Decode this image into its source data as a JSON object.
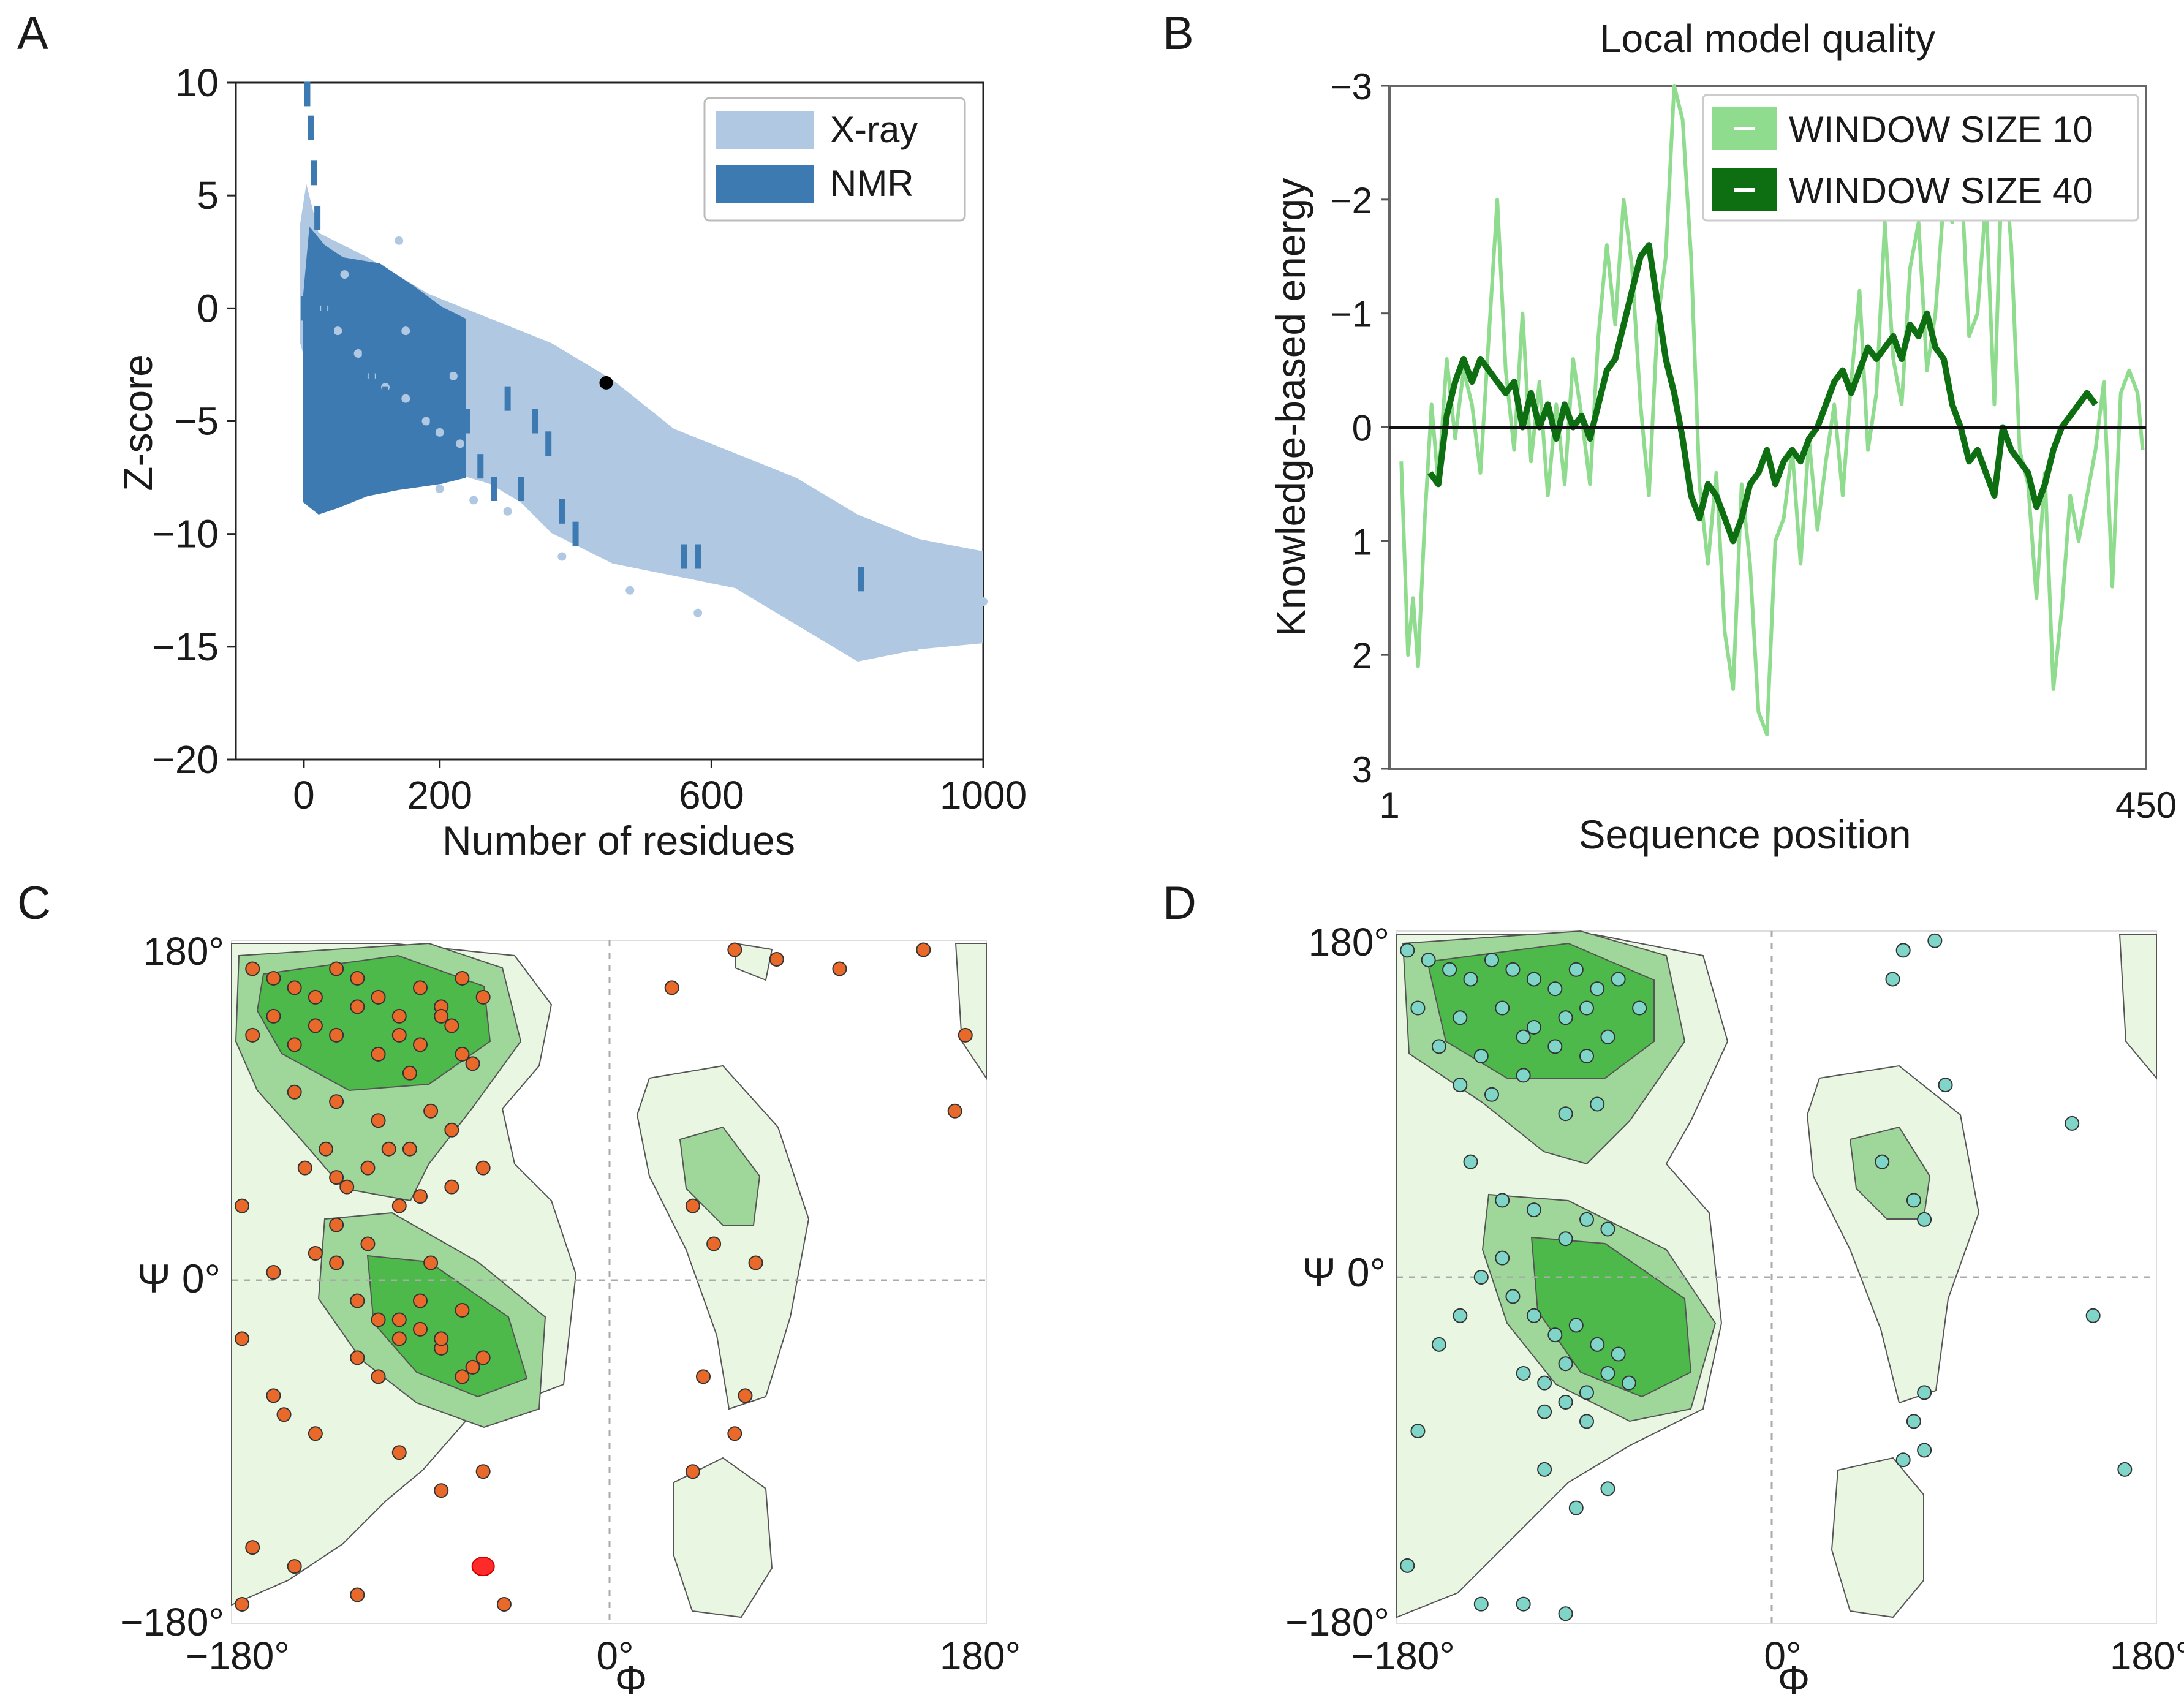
{
  "panels": {
    "a": "A",
    "b": "B",
    "c": "C",
    "d": "D"
  },
  "colors": {
    "xray": "#b0c8e2",
    "nmr": "#3d7ab2",
    "query": "#000000",
    "win10": "#8fdc8f",
    "win40": "#0e6e12",
    "rama_light": "#e8f6e2",
    "rama_mid": "#9fd79b",
    "rama_core": "#4cb94a",
    "points_c": "#e8692a",
    "outlier_c": "#ff2a2a",
    "points_d": "#7fd6c8"
  },
  "chart_data": [
    {
      "id": "A",
      "type": "scatter",
      "title": "",
      "xlabel": "Number of residues",
      "ylabel": "Z-score",
      "xlim": [
        -100,
        1000
      ],
      "ylim": [
        -20,
        10
      ],
      "xticks": [
        "0",
        "200",
        "600",
        "1000"
      ],
      "xtick_values": [
        0,
        200,
        600,
        1000
      ],
      "yticks": [
        "10",
        "5",
        "0",
        "−10",
        "−15",
        "−20"
      ],
      "ytick_values": [
        10,
        5,
        0,
        -10,
        -15,
        -20
      ],
      "ytick_extra": {
        "label": "−5",
        "value": -5
      },
      "legend": {
        "position": "top-right",
        "entries": [
          "X-ray",
          "NMR"
        ]
      },
      "series": [
        {
          "name": "X-ray",
          "x": [
            10,
            30,
            50,
            80,
            100,
            120,
            150,
            180,
            200,
            230,
            260,
            300,
            330,
            360,
            400,
            440,
            480,
            520,
            560,
            600,
            640,
            680,
            720,
            760,
            800,
            850,
            900,
            950,
            1000,
            60,
            150,
            250,
            350,
            450,
            550,
            650,
            750,
            850,
            950,
            200,
            300,
            400,
            500,
            600,
            700,
            800,
            900,
            220,
            320,
            420,
            520,
            620,
            720,
            820,
            920,
            140,
            250,
            380,
            480,
            580
          ],
          "y": [
            4,
            0,
            -1,
            -2,
            -3,
            -3.5,
            -4,
            -5,
            -5.5,
            -6,
            -6.5,
            -7,
            -7.5,
            -8,
            -8.5,
            -9,
            -9.5,
            -10,
            -10.5,
            -11,
            -11.5,
            -12,
            -12.5,
            -13,
            -13.5,
            -14,
            -14,
            -14.5,
            -13,
            1.5,
            -1,
            -2,
            -3.5,
            -4.5,
            -6,
            -7,
            -8.5,
            -10,
            -11,
            -8,
            -9,
            -10,
            -11,
            -12,
            -13,
            -14,
            -15,
            -3,
            -4,
            -5,
            -6,
            -7.5,
            -9,
            -10,
            -11,
            3,
            -8.5,
            -11,
            -12.5,
            -13.5
          ]
        },
        {
          "name": "NMR",
          "x": [
            0,
            5,
            10,
            15,
            20,
            25,
            30,
            40,
            50,
            60,
            70,
            80,
            90,
            100,
            110,
            120,
            130,
            140,
            150,
            160,
            170,
            180,
            190,
            200,
            210,
            220,
            240,
            260,
            280,
            300,
            320,
            340,
            360,
            380,
            400,
            560,
            580,
            820
          ],
          "y": [
            0,
            9.5,
            8,
            6,
            4,
            2,
            0,
            -1,
            -2,
            -3,
            -4,
            -5,
            -2,
            -3,
            -6,
            -4,
            -2,
            -5,
            -7,
            -3,
            -6,
            -4,
            -5,
            -7,
            -3,
            -6,
            -5,
            -7,
            -8,
            -4,
            -8,
            -5,
            -6,
            -9,
            -10,
            -11,
            -11,
            -12
          ]
        },
        {
          "name": "query",
          "x": [
            445
          ],
          "y": [
            -3.3
          ]
        }
      ]
    },
    {
      "id": "B",
      "type": "line",
      "title": "Local model quality",
      "xlabel": "Sequence position",
      "ylabel": "Knowledge-based energy",
      "xlim": [
        1,
        450
      ],
      "ylim": [
        3,
        -3
      ],
      "xticks": [
        "1",
        "450"
      ],
      "yticks": [
        "−3",
        "−2",
        "−1",
        "0",
        "1",
        "2",
        "3"
      ],
      "ytick_values": [
        -3,
        -2,
        -1,
        0,
        1,
        2,
        3
      ],
      "legend": {
        "position": "top-right",
        "entries": [
          "WINDOW SIZE 10",
          "WINDOW SIZE 40"
        ]
      },
      "series": [
        {
          "name": "WINDOW SIZE 10",
          "x": [
            8,
            12,
            15,
            18,
            22,
            26,
            30,
            35,
            40,
            45,
            50,
            55,
            60,
            65,
            70,
            75,
            80,
            85,
            90,
            95,
            100,
            105,
            110,
            115,
            120,
            125,
            130,
            135,
            140,
            145,
            150,
            155,
            160,
            165,
            170,
            175,
            180,
            185,
            190,
            195,
            200,
            205,
            210,
            215,
            220,
            225,
            230,
            235,
            240,
            245,
            250,
            255,
            260,
            265,
            270,
            275,
            280,
            285,
            290,
            295,
            300,
            305,
            310,
            315,
            320,
            325,
            330,
            335,
            340,
            345,
            350,
            355,
            360,
            365,
            370,
            375,
            380,
            385,
            390,
            395,
            400,
            405,
            410,
            415,
            420,
            425,
            430,
            435,
            440,
            445,
            448
          ],
          "y": [
            0.3,
            2.0,
            1.5,
            2.1,
            0.8,
            -0.2,
            0.5,
            -0.6,
            0.1,
            -0.5,
            -0.2,
            0.4,
            -0.8,
            -2.0,
            -0.5,
            0.2,
            -1.0,
            0.3,
            -0.4,
            0.6,
            -0.2,
            0.5,
            -0.6,
            -0.1,
            0.5,
            -0.8,
            -1.6,
            -0.9,
            -2.0,
            -1.4,
            -0.2,
            0.6,
            -0.9,
            -1.5,
            -3.0,
            -2.7,
            -1.5,
            0.5,
            1.2,
            0.4,
            1.8,
            2.3,
            0.5,
            1.2,
            2.5,
            2.7,
            1.0,
            0.8,
            0.2,
            1.2,
            0.1,
            0.9,
            0.3,
            -0.2,
            0.6,
            -0.4,
            -1.2,
            0.2,
            -0.3,
            -1.8,
            -0.6,
            -0.2,
            -1.4,
            -1.8,
            -0.5,
            -1.0,
            -2.0,
            -1.8,
            -2.3,
            -0.8,
            -1.0,
            -2.0,
            -0.2,
            -2.5,
            -1.6,
            0.2,
            0.5,
            1.5,
            0.4,
            2.3,
            1.6,
            0.6,
            1.0,
            0.6,
            0.2,
            -0.4,
            1.4,
            -0.3,
            -0.5,
            -0.3,
            0.2
          ]
        },
        {
          "name": "WINDOW SIZE 40",
          "x": [
            25,
            30,
            35,
            40,
            45,
            50,
            55,
            60,
            65,
            70,
            75,
            80,
            85,
            90,
            95,
            100,
            105,
            110,
            115,
            120,
            125,
            130,
            135,
            140,
            145,
            150,
            155,
            160,
            165,
            170,
            175,
            180,
            185,
            190,
            195,
            200,
            205,
            210,
            215,
            220,
            225,
            230,
            235,
            240,
            245,
            250,
            255,
            260,
            265,
            270,
            275,
            280,
            285,
            290,
            295,
            300,
            305,
            310,
            315,
            320,
            325,
            330,
            335,
            340,
            345,
            350,
            355,
            360,
            365,
            370,
            375,
            380,
            385,
            390,
            395,
            400,
            405,
            410,
            415,
            420
          ],
          "y": [
            0.4,
            0.5,
            -0.1,
            -0.4,
            -0.6,
            -0.4,
            -0.6,
            -0.5,
            -0.4,
            -0.3,
            -0.4,
            0.0,
            -0.3,
            0.0,
            -0.2,
            0.1,
            -0.2,
            0.0,
            -0.1,
            0.1,
            -0.2,
            -0.5,
            -0.6,
            -0.9,
            -1.2,
            -1.5,
            -1.6,
            -1.1,
            -0.6,
            -0.3,
            0.1,
            0.6,
            0.8,
            0.5,
            0.6,
            0.8,
            1.0,
            0.8,
            0.5,
            0.4,
            0.2,
            0.5,
            0.3,
            0.2,
            0.3,
            0.1,
            0.0,
            -0.2,
            -0.4,
            -0.5,
            -0.3,
            -0.5,
            -0.7,
            -0.6,
            -0.7,
            -0.8,
            -0.6,
            -0.9,
            -0.8,
            -1.0,
            -0.7,
            -0.6,
            -0.2,
            0.0,
            0.3,
            0.2,
            0.4,
            0.6,
            0.0,
            0.2,
            0.3,
            0.4,
            0.7,
            0.5,
            0.2,
            0.0,
            -0.1,
            -0.2,
            -0.3,
            -0.2
          ]
        }
      ]
    },
    {
      "id": "C",
      "type": "scatter",
      "title": "",
      "xlabel": "Φ",
      "ylabel": "Ψ 0°",
      "xlim": [
        -180,
        180
      ],
      "ylim": [
        -180,
        180
      ],
      "xticks": [
        "−180°",
        "0°",
        "180°"
      ],
      "yticks": [
        "180°",
        "−180°"
      ],
      "series": [
        {
          "name": "residues",
          "phi": [
            -170,
            -160,
            -150,
            -140,
            -130,
            -120,
            -110,
            -100,
            -90,
            -80,
            -70,
            -60,
            -170,
            -150,
            -130,
            -110,
            -90,
            -75,
            -65,
            -160,
            -140,
            -120,
            -100,
            -80,
            -70,
            -150,
            -130,
            -110,
            -95,
            -85,
            -145,
            -125,
            -105,
            -90,
            -130,
            -120,
            -110,
            -100,
            -90,
            -80,
            -70,
            -60,
            -120,
            -110,
            -100,
            -90,
            -80,
            -70,
            -65,
            -130,
            -115,
            -100,
            -85,
            -75,
            -60,
            -160,
            -140,
            -100,
            -80,
            -60,
            -170,
            -150,
            -175,
            -120,
            -50,
            30,
            60,
            80,
            110,
            150,
            170,
            165,
            40,
            50,
            70,
            45,
            65,
            60,
            40,
            -175,
            -155,
            -135,
            -115,
            -95,
            -75,
            -175,
            -160,
            -140,
            -130
          ],
          "psi": [
            165,
            160,
            155,
            150,
            165,
            160,
            150,
            140,
            155,
            145,
            160,
            150,
            130,
            125,
            130,
            120,
            125,
            135,
            115,
            140,
            135,
            145,
            130,
            140,
            120,
            100,
            95,
            85,
            110,
            90,
            60,
            50,
            70,
            45,
            10,
            -10,
            -20,
            -30,
            -25,
            -35,
            -15,
            -40,
            -40,
            -50,
            -20,
            -10,
            -30,
            -50,
            -45,
            30,
            20,
            40,
            10,
            50,
            60,
            -60,
            -80,
            -90,
            -110,
            -100,
            -140,
            -150,
            -170,
            -165,
            -170,
            155,
            175,
            170,
            165,
            175,
            130,
            90,
            40,
            20,
            10,
            -50,
            -60,
            -80,
            -100,
            -30,
            -70,
            70,
            60,
            70,
            80,
            40,
            5,
            15,
            55
          ]
        }
      ],
      "outlier": {
        "phi": -60,
        "psi": -150
      }
    },
    {
      "id": "D",
      "type": "scatter",
      "title": "",
      "xlabel": "Φ",
      "ylabel": "Ψ 0°",
      "xlim": [
        -180,
        180
      ],
      "ylim": [
        -180,
        180
      ],
      "xticks": [
        "−180°",
        "0°",
        "180°"
      ],
      "yticks": [
        "180°",
        "−180°"
      ],
      "series": [
        {
          "name": "residues",
          "phi": [
            -175,
            -165,
            -155,
            -145,
            -135,
            -125,
            -115,
            -105,
            -95,
            -85,
            -75,
            -65,
            -170,
            -150,
            -130,
            -115,
            -100,
            -90,
            -80,
            -160,
            -140,
            -120,
            -105,
            -90,
            -150,
            -135,
            -120,
            -100,
            -85,
            -145,
            -130,
            -115,
            -100,
            -90,
            -80,
            -125,
            -115,
            -105,
            -95,
            -85,
            -75,
            -120,
            -110,
            -100,
            -90,
            -80,
            -110,
            -100,
            -90,
            -130,
            -140,
            -150,
            -160,
            -70,
            -170,
            -110,
            -95,
            -80,
            50,
            65,
            70,
            60,
            75,
            55,
            70,
            65,
            70,
            60,
            80,
            140,
            150,
            165,
            -100,
            -120,
            -140,
            -175
          ],
          "psi": [
            170,
            165,
            160,
            155,
            165,
            160,
            155,
            150,
            160,
            150,
            155,
            140,
            140,
            135,
            140,
            130,
            135,
            140,
            125,
            120,
            115,
            125,
            120,
            115,
            100,
            95,
            105,
            85,
            90,
            60,
            40,
            35,
            20,
            30,
            25,
            -10,
            -20,
            -30,
            -25,
            -35,
            -40,
            -50,
            -55,
            -45,
            -60,
            -50,
            -70,
            -65,
            -75,
            10,
            0,
            -20,
            -35,
            -55,
            -80,
            -100,
            -120,
            -110,
            60,
            40,
            30,
            170,
            175,
            155,
            -60,
            -75,
            -90,
            -95,
            100,
            80,
            -20,
            -100,
            -175,
            -170,
            -170,
            -150
          ]
        }
      ]
    }
  ]
}
